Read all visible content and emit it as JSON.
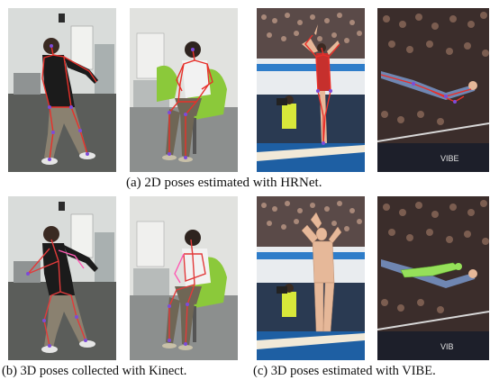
{
  "figure": {
    "caption_a": "(a) 2D poses estimated with HRNet.",
    "caption_b": "(b) 3D poses collected with Kinect.",
    "caption_c": "(c) 3D poses estimated with VIBE."
  },
  "banners": {
    "vibe_text_1": "VIBE",
    "vibe_text_2": "VIB"
  },
  "colors": {
    "skeleton_2d": "#e8302a",
    "skeleton_kinect_red": "#e23a3a",
    "skeleton_kinect_pink": "#ff5ab3",
    "joint_color": "#7d4bd8",
    "mesh_skin": "#e6b899",
    "mesh_highlight": "#96e05a",
    "gym_dark": "#10151f",
    "gym_floor": "#1e5fa3"
  }
}
